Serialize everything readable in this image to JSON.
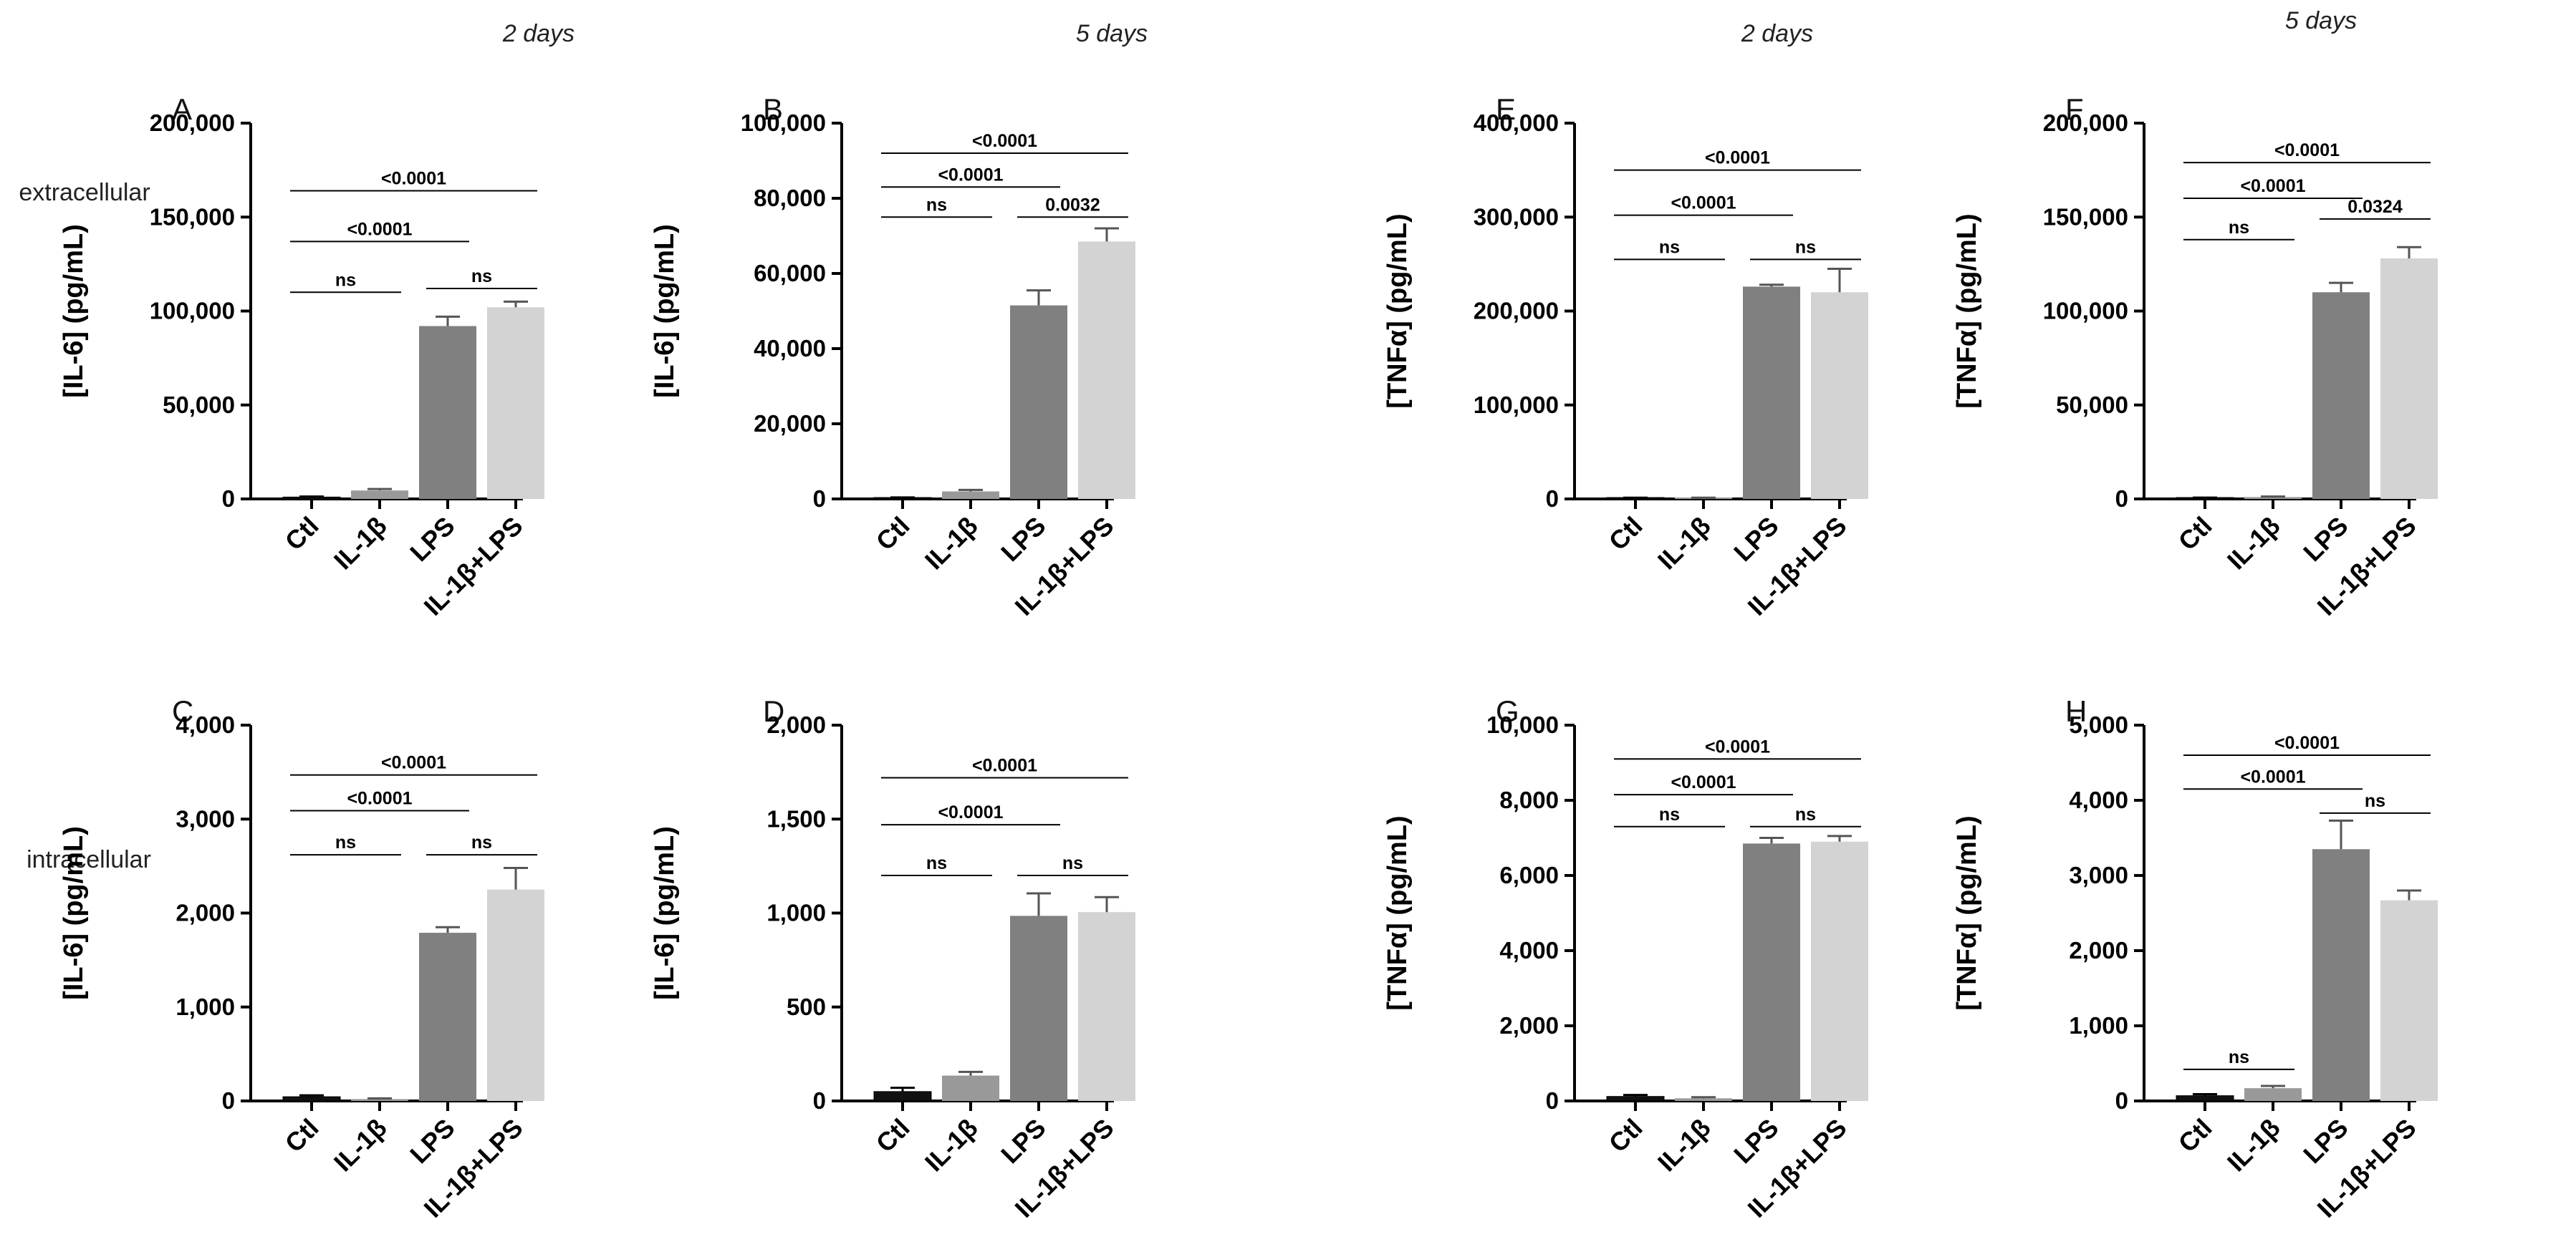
{
  "headers": [
    "2 days",
    "5 days",
    "2 days",
    "5 days"
  ],
  "row_labels": [
    "extracellular",
    "intracellular"
  ],
  "colors": {
    "Ctl": "#111111",
    "IL-1β": "#999999",
    "LPS": "#808080",
    "IL-1β+LPS": "#d3d3d3"
  },
  "chart_data": [
    {
      "panel": "A",
      "type": "bar",
      "ylabel": "[IL-6] (pg/mL)",
      "categories": [
        "Ctl",
        "IL-1β",
        "LPS",
        "IL-1β+LPS"
      ],
      "values": [
        1000,
        4500,
        92000,
        102000
      ],
      "errors": [
        300,
        800,
        5000,
        3000
      ],
      "ylim": [
        0,
        200000
      ],
      "yticks": [
        0,
        50000,
        100000,
        150000,
        200000
      ],
      "ytick_labels": [
        "0",
        "50,000",
        "100,000",
        "150,000",
        "200,000"
      ],
      "comparisons": [
        {
          "from": 0,
          "to": 1,
          "label": "ns",
          "level": 110000
        },
        {
          "from": 2,
          "to": 3,
          "label": "ns",
          "level": 112000
        },
        {
          "from": 0,
          "to": 2,
          "label": "<0.0001",
          "level": 137000
        },
        {
          "from": 0,
          "to": 3,
          "label": "<0.0001",
          "level": 164000
        }
      ]
    },
    {
      "panel": "B",
      "type": "bar",
      "ylabel": "[IL-6] (pg/mL)",
      "categories": [
        "Ctl",
        "IL-1β",
        "LPS",
        "IL-1β+LPS"
      ],
      "values": [
        300,
        2000,
        51500,
        68500
      ],
      "errors": [
        100,
        400,
        4000,
        3500
      ],
      "ylim": [
        0,
        100000
      ],
      "yticks": [
        0,
        20000,
        40000,
        60000,
        80000,
        100000
      ],
      "ytick_labels": [
        "0",
        "20,000",
        "40,000",
        "60,000",
        "80,000",
        "100,000"
      ],
      "comparisons": [
        {
          "from": 0,
          "to": 1,
          "label": "ns",
          "level": 75000
        },
        {
          "from": 2,
          "to": 3,
          "label": "0.0032",
          "level": 75000
        },
        {
          "from": 0,
          "to": 2,
          "label": "<0.0001",
          "level": 83000
        },
        {
          "from": 0,
          "to": 3,
          "label": "<0.0001",
          "level": 92000
        }
      ]
    },
    {
      "panel": "E",
      "type": "bar",
      "ylabel": "[TNFα] (pg/mL)",
      "categories": [
        "Ctl",
        "IL-1β",
        "LPS",
        "IL-1β+LPS"
      ],
      "values": [
        1000,
        1000,
        226000,
        220000
      ],
      "errors": [
        300,
        300,
        2000,
        25000
      ],
      "ylim": [
        0,
        400000
      ],
      "yticks": [
        0,
        100000,
        200000,
        300000,
        400000
      ],
      "ytick_labels": [
        "0",
        "100,000",
        "200,000",
        "300,000",
        "400,000"
      ],
      "comparisons": [
        {
          "from": 0,
          "to": 1,
          "label": "ns",
          "level": 255000
        },
        {
          "from": 2,
          "to": 3,
          "label": "ns",
          "level": 255000
        },
        {
          "from": 0,
          "to": 2,
          "label": "<0.0001",
          "level": 302000
        },
        {
          "from": 0,
          "to": 3,
          "label": "<0.0001",
          "level": 350000
        }
      ]
    },
    {
      "panel": "F",
      "type": "bar",
      "ylabel": "[TNFα] (pg/mL)",
      "categories": [
        "Ctl",
        "IL-1β",
        "LPS",
        "IL-1β+LPS"
      ],
      "values": [
        500,
        1000,
        110000,
        128000
      ],
      "errors": [
        200,
        300,
        5000,
        6000
      ],
      "ylim": [
        0,
        200000
      ],
      "yticks": [
        0,
        50000,
        100000,
        150000,
        200000
      ],
      "ytick_labels": [
        "0",
        "50,000",
        "100,000",
        "150,000",
        "200,000"
      ],
      "comparisons": [
        {
          "from": 0,
          "to": 1,
          "label": "ns",
          "level": 138000
        },
        {
          "from": 2,
          "to": 3,
          "label": "0.0324",
          "level": 149000
        },
        {
          "from": 0,
          "to": 2,
          "label": "<0.0001",
          "level": 160000
        },
        {
          "from": 0,
          "to": 3,
          "label": "<0.0001",
          "level": 179000
        }
      ]
    },
    {
      "panel": "C",
      "type": "bar",
      "ylabel": "[IL-6] (pg/mL)",
      "categories": [
        "Ctl",
        "IL-1β",
        "LPS",
        "IL-1β+LPS"
      ],
      "values": [
        45,
        20,
        1790,
        2250
      ],
      "errors": [
        15,
        8,
        60,
        230
      ],
      "ylim": [
        0,
        4000
      ],
      "yticks": [
        0,
        1000,
        2000,
        3000,
        4000
      ],
      "ytick_labels": [
        "0",
        "1,000",
        "2,000",
        "3,000",
        "4,000"
      ],
      "comparisons": [
        {
          "from": 0,
          "to": 1,
          "label": "ns",
          "level": 2620
        },
        {
          "from": 2,
          "to": 3,
          "label": "ns",
          "level": 2620
        },
        {
          "from": 0,
          "to": 2,
          "label": "<0.0001",
          "level": 3090
        },
        {
          "from": 0,
          "to": 3,
          "label": "<0.0001",
          "level": 3470
        }
      ]
    },
    {
      "panel": "D",
      "type": "bar",
      "ylabel": "[IL-6] (pg/mL)",
      "categories": [
        "Ctl",
        "IL-1β",
        "LPS",
        "IL-1β+LPS"
      ],
      "values": [
        50,
        135,
        985,
        1005
      ],
      "errors": [
        20,
        20,
        120,
        80
      ],
      "ylim": [
        0,
        2000
      ],
      "yticks": [
        0,
        500,
        1000,
        1500,
        2000
      ],
      "ytick_labels": [
        "0",
        "500",
        "1,000",
        "1,500",
        "2,000"
      ],
      "comparisons": [
        {
          "from": 0,
          "to": 1,
          "label": "ns",
          "level": 1200
        },
        {
          "from": 2,
          "to": 3,
          "label": "ns",
          "level": 1200
        },
        {
          "from": 0,
          "to": 2,
          "label": "<0.0001",
          "level": 1470
        },
        {
          "from": 0,
          "to": 3,
          "label": "<0.0001",
          "level": 1720
        }
      ]
    },
    {
      "panel": "G",
      "type": "bar",
      "ylabel": "[TNFα] (pg/mL)",
      "categories": [
        "Ctl",
        "IL-1β",
        "LPS",
        "IL-1β+LPS"
      ],
      "values": [
        120,
        70,
        6850,
        6900
      ],
      "errors": [
        40,
        30,
        150,
        150
      ],
      "ylim": [
        0,
        10000
      ],
      "yticks": [
        0,
        2000,
        4000,
        6000,
        8000,
        10000
      ],
      "ytick_labels": [
        "0",
        "2,000",
        "4,000",
        "6,000",
        "8,000",
        "10,000"
      ],
      "comparisons": [
        {
          "from": 0,
          "to": 1,
          "label": "ns",
          "level": 7300
        },
        {
          "from": 2,
          "to": 3,
          "label": "ns",
          "level": 7300
        },
        {
          "from": 0,
          "to": 2,
          "label": "<0.0001",
          "level": 8150
        },
        {
          "from": 0,
          "to": 3,
          "label": "<0.0001",
          "level": 9100
        }
      ]
    },
    {
      "panel": "H",
      "type": "bar",
      "ylabel": "[TNFα] (pg/mL)",
      "categories": [
        "Ctl",
        "IL-1β",
        "LPS",
        "IL-1β+LPS"
      ],
      "values": [
        70,
        170,
        3350,
        2670
      ],
      "errors": [
        20,
        30,
        380,
        130
      ],
      "ylim": [
        0,
        5000
      ],
      "yticks": [
        0,
        1000,
        2000,
        3000,
        4000,
        5000
      ],
      "ytick_labels": [
        "0",
        "1,000",
        "2,000",
        "3,000",
        "4,000",
        "5,000"
      ],
      "comparisons": [
        {
          "from": 0,
          "to": 1,
          "label": "ns",
          "level": 420
        },
        {
          "from": 2,
          "to": 3,
          "label": "ns",
          "level": 3830
        },
        {
          "from": 0,
          "to": 2,
          "label": "<0.0001",
          "level": 4150
        },
        {
          "from": 0,
          "to": 3,
          "label": "<0.0001",
          "level": 4600
        }
      ]
    }
  ]
}
